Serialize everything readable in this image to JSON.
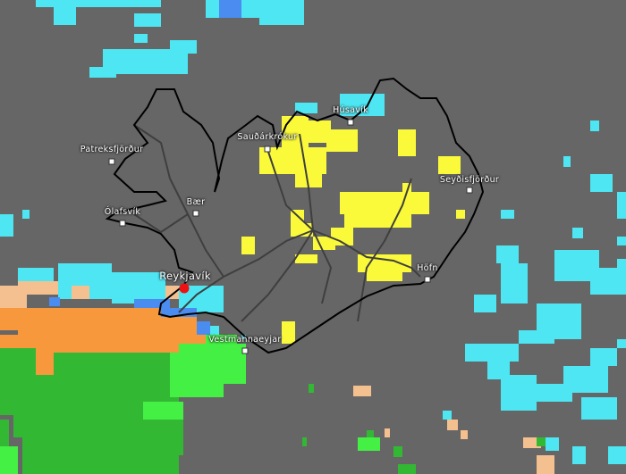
{
  "map": {
    "colors": {
      "background": "#666666",
      "cyan": "#4de6f2",
      "blue": "#4b8cf0",
      "yellow": "#fafa3a",
      "orange": "#f7983c",
      "peach": "#f5c090",
      "green": "#33b833",
      "light_green": "#44f044",
      "coastline": "#000000",
      "roads": "#3a3a3a",
      "capital_marker": "#ee1111"
    },
    "places": [
      {
        "name": "Húsavík",
        "capital": false
      },
      {
        "name": "Sauðárkrókur",
        "capital": false
      },
      {
        "name": "Patreksfjörður",
        "capital": false
      },
      {
        "name": "Seyðisfjörður",
        "capital": false
      },
      {
        "name": "Bær",
        "capital": false
      },
      {
        "name": "Ólafsvík",
        "capital": false
      },
      {
        "name": "Reykjavík",
        "capital": true
      },
      {
        "name": "Höfn",
        "capital": false
      },
      {
        "name": "Vestmannaeyjar",
        "capital": false
      }
    ]
  }
}
